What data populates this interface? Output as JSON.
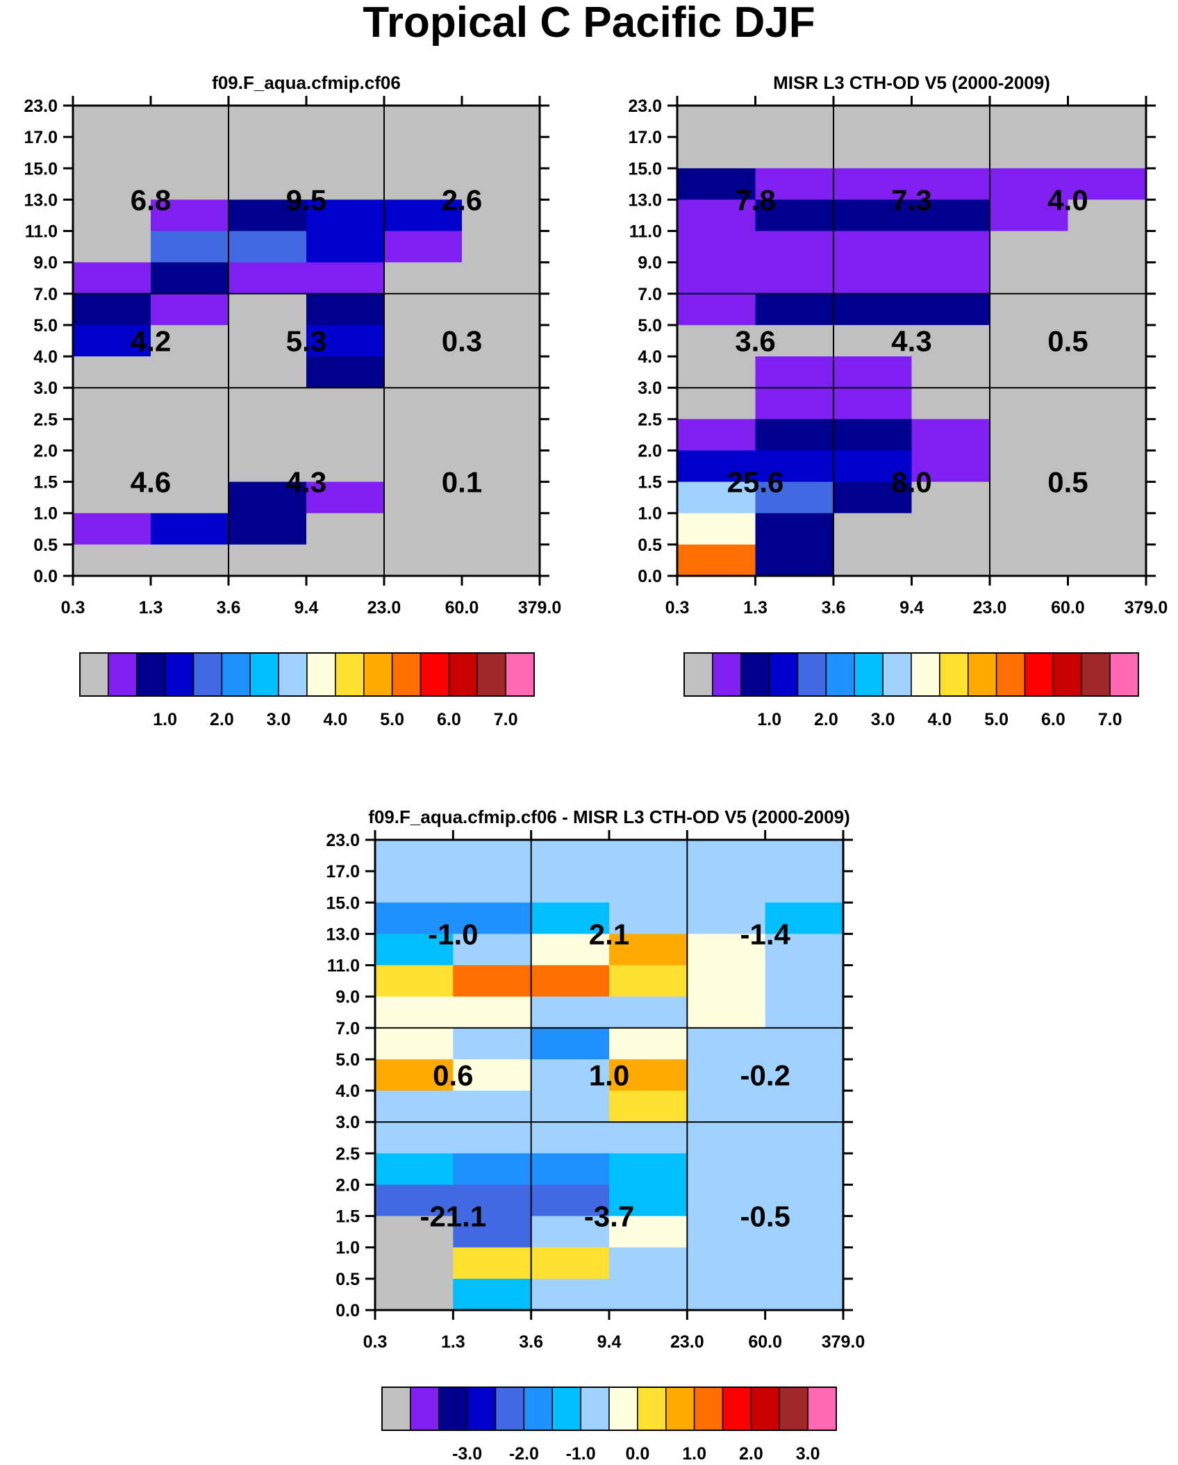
{
  "title": "Tropical C Pacific DJF",
  "axes": {
    "x_ticks": [
      "0.3",
      "1.3",
      "3.6",
      "9.4",
      "23.0",
      "60.0",
      "379.0"
    ],
    "y_ticks": [
      "0.0",
      "0.5",
      "1.0",
      "1.5",
      "2.0",
      "2.5",
      "3.0",
      "4.0",
      "5.0",
      "7.0",
      "9.0",
      "11.0",
      "13.0",
      "15.0",
      "17.0",
      "23.0"
    ]
  },
  "palette": [
    "#c0c0c0",
    "#8020f0",
    "#00008c",
    "#0000cd",
    "#4169e1",
    "#1e90ff",
    "#00bfff",
    "#a0d2ff",
    "#ffffe0",
    "#ffe030",
    "#ffaa00",
    "#ff6e00",
    "#ff0000",
    "#c80000",
    "#a02828",
    "#ff69b4"
  ],
  "chart_data": [
    {
      "type": "heatmap",
      "title": "f09.F_aqua.cfmip.cf06",
      "cells_color_index": [
        [
          0,
          0,
          0,
          0,
          0,
          0
        ],
        [
          0,
          0,
          0,
          0,
          0,
          0
        ],
        [
          0,
          0,
          0,
          0,
          0,
          0
        ],
        [
          0,
          1,
          2,
          3,
          3,
          0
        ],
        [
          0,
          4,
          4,
          3,
          1,
          0
        ],
        [
          1,
          2,
          1,
          1,
          0,
          0
        ],
        [
          2,
          1,
          0,
          2,
          0,
          0
        ],
        [
          3,
          0,
          0,
          3,
          0,
          0
        ],
        [
          0,
          0,
          0,
          2,
          0,
          0
        ],
        [
          0,
          0,
          0,
          0,
          0,
          0
        ],
        [
          0,
          0,
          0,
          0,
          0,
          0
        ],
        [
          0,
          0,
          0,
          0,
          0,
          0
        ],
        [
          0,
          0,
          2,
          1,
          0,
          0
        ],
        [
          1,
          3,
          2,
          0,
          0,
          0
        ],
        [
          0,
          0,
          0,
          0,
          0,
          0
        ]
      ],
      "group_totals": [
        [
          "6.8",
          "9.5",
          "2.6"
        ],
        [
          "4.2",
          "5.3",
          "0.3"
        ],
        [
          "4.6",
          "4.3",
          "0.1"
        ]
      ],
      "colorbar_labels": [
        "1.0",
        "2.0",
        "3.0",
        "4.0",
        "5.0",
        "6.0",
        "7.0"
      ]
    },
    {
      "type": "heatmap",
      "title": "MISR L3 CTH-OD V5 (2000-2009)",
      "cells_color_index": [
        [
          0,
          0,
          0,
          0,
          0,
          0
        ],
        [
          0,
          0,
          0,
          0,
          0,
          0
        ],
        [
          2,
          1,
          1,
          1,
          1,
          1
        ],
        [
          1,
          2,
          2,
          2,
          1,
          0
        ],
        [
          1,
          1,
          1,
          1,
          0,
          0
        ],
        [
          1,
          1,
          1,
          1,
          0,
          0
        ],
        [
          1,
          2,
          2,
          2,
          0,
          0
        ],
        [
          0,
          0,
          0,
          0,
          0,
          0
        ],
        [
          0,
          1,
          1,
          0,
          0,
          0
        ],
        [
          0,
          1,
          1,
          0,
          0,
          0
        ],
        [
          1,
          2,
          2,
          1,
          0,
          0
        ],
        [
          3,
          3,
          3,
          1,
          0,
          0
        ],
        [
          7,
          4,
          2,
          0,
          0,
          0
        ],
        [
          8,
          2,
          0,
          0,
          0,
          0
        ],
        [
          11,
          2,
          0,
          0,
          0,
          0
        ]
      ],
      "group_totals": [
        [
          "7.8",
          "7.3",
          "4.0"
        ],
        [
          "3.6",
          "4.3",
          "0.5"
        ],
        [
          "25.6",
          "8.0",
          "0.5"
        ]
      ],
      "colorbar_labels": [
        "1.0",
        "2.0",
        "3.0",
        "4.0",
        "5.0",
        "6.0",
        "7.0"
      ]
    },
    {
      "type": "heatmap",
      "title": "f09.F_aqua.cfmip.cf06 - MISR L3 CTH-OD V5 (2000-2009)",
      "cells_color_index": [
        [
          7,
          7,
          7,
          7,
          7,
          7
        ],
        [
          7,
          7,
          7,
          7,
          7,
          7
        ],
        [
          5,
          5,
          6,
          7,
          7,
          6
        ],
        [
          6,
          7,
          8,
          10,
          8,
          7
        ],
        [
          9,
          11,
          11,
          9,
          8,
          7
        ],
        [
          8,
          8,
          7,
          7,
          8,
          7
        ],
        [
          8,
          7,
          5,
          8,
          7,
          7
        ],
        [
          10,
          8,
          7,
          10,
          7,
          7
        ],
        [
          7,
          7,
          7,
          9,
          7,
          7
        ],
        [
          7,
          7,
          7,
          7,
          7,
          7
        ],
        [
          6,
          5,
          5,
          6,
          7,
          7
        ],
        [
          4,
          4,
          4,
          6,
          7,
          7
        ],
        [
          0,
          4,
          7,
          8,
          7,
          7
        ],
        [
          0,
          9,
          9,
          7,
          7,
          7
        ],
        [
          0,
          6,
          7,
          7,
          7,
          7
        ]
      ],
      "group_totals": [
        [
          "-1.0",
          "2.1",
          "-1.4"
        ],
        [
          "0.6",
          "1.0",
          "-0.2"
        ],
        [
          "-21.1",
          "-3.7",
          "-0.5"
        ]
      ],
      "colorbar_labels": [
        "-3.0",
        "-2.0",
        "-1.0",
        "0.0",
        "1.0",
        "2.0",
        "3.0"
      ]
    }
  ]
}
